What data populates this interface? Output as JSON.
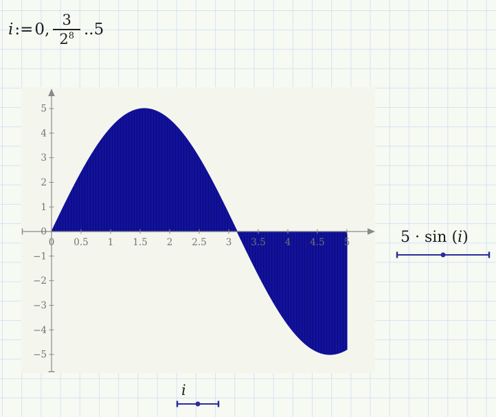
{
  "formula": {
    "variable": "i",
    "assign_op": ":=",
    "start": "0",
    "separator": ",",
    "step_numerator": "3",
    "step_base": "2",
    "step_exponent": "8",
    "range_op": "..",
    "end": "5"
  },
  "plot": {
    "y_trace_label_prefix": "5 · sin",
    "y_trace_open_paren": "(",
    "y_trace_variable": "i",
    "y_trace_close_paren": ")",
    "x_trace_variable": "i"
  },
  "chart_data": {
    "type": "area",
    "title": "",
    "expression": "5·sin(i)",
    "x_variable": "i",
    "amplitude": 5,
    "x_range": [
      0,
      5
    ],
    "y_range": [
      -5,
      5
    ],
    "x_step": 0.01171875,
    "x_ticks": {
      "values": [
        0,
        0.5,
        1,
        1.5,
        2,
        2.5,
        3,
        3.5,
        4,
        4.5,
        5
      ],
      "labels": [
        "0",
        "0.5",
        "1",
        "1.5",
        "2",
        "2.5",
        "3",
        "3.5",
        "4",
        "4.5",
        "5"
      ]
    },
    "y_ticks": {
      "values": [
        5,
        4,
        3,
        2,
        1,
        0,
        -1,
        -2,
        -3,
        -4,
        -5
      ],
      "labels": [
        "5",
        "4",
        "3",
        "2",
        "1",
        "0",
        "−1",
        "−2",
        "−3",
        "−4",
        "−5"
      ]
    },
    "legend_position": "right-and-bottom",
    "grid_inside_plot": false,
    "fill_color": "#12129c",
    "stripe_color": "#0a0a7c",
    "legend_line_color": "#2b2b9a",
    "axis_color": "#8a8a8a",
    "tick_label_color": "#73736e"
  },
  "colors": {
    "page_background": "#f7faf2",
    "grid_line": "#d3e2f4",
    "plot_background": "#f4f6ee",
    "text": "#1d1d1d"
  }
}
